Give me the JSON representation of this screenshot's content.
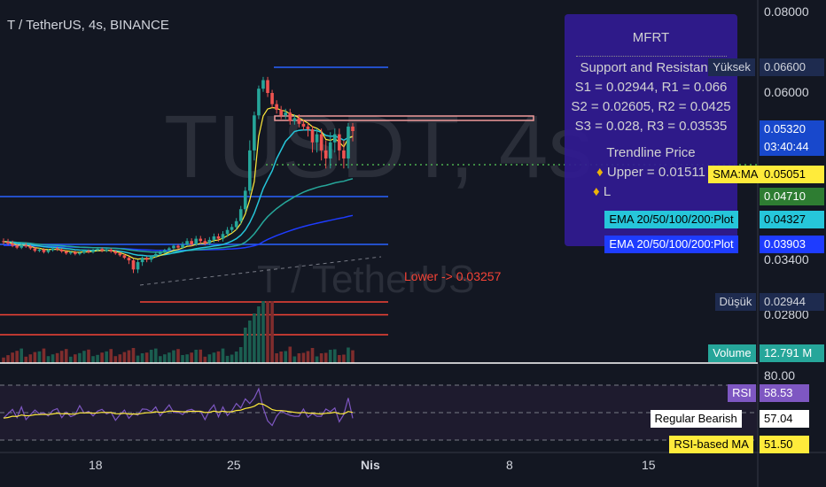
{
  "header": {
    "title": "T / TetherUS, 4s, BINANCE"
  },
  "watermark": {
    "symbol": "TUSDT, 4s",
    "name": "T / TetherUS"
  },
  "panel": {
    "title": "MFRT",
    "sr_title": "Support and Resistance",
    "lines": [
      "S1 = 0.02944, R1 = 0.066",
      "S2 = 0.02605, R2 = 0.0425",
      "S3 = 0.028, R3 = 0.03535"
    ],
    "trend_title": "Trendline Price",
    "trend_upper": "Upper = 0.01511",
    "trend_lower": "L"
  },
  "lower_label": "Lower -> 0.03257",
  "price_axis": [
    {
      "label": "0.08000",
      "v": 0.08
    },
    {
      "label": "0.06000",
      "v": 0.06
    },
    {
      "label": "0.03400",
      "v": 0.034
    },
    {
      "label": "0.02800",
      "v": 0.028
    }
  ],
  "price_tags": [
    {
      "name": "Yüksek",
      "value": "0.06600",
      "v": 0.066,
      "bg": "#1e2b4f",
      "fg": "#d1d4dc",
      "side": "#131722"
    },
    {
      "name": "",
      "value": "0.05320",
      "time": "03:40:44",
      "v": 0.0532,
      "bg": "#1848cc",
      "fg": "#ffffff"
    },
    {
      "name": "SMA:MA",
      "value": "0.05051",
      "v": 0.05051,
      "bg": "#ffeb3b",
      "fg": "#000000"
    },
    {
      "name": "",
      "value": "0.04710",
      "v": 0.0471,
      "bg": "#2e7d32",
      "fg": "#ffffff"
    },
    {
      "name": "EMA 20/50/100/200:Plot",
      "value": "0.04327",
      "v": 0.04327,
      "bg": "#26c6da",
      "fg": "#000000"
    },
    {
      "name": "EMA 20/50/100/200:Plot",
      "value": "0.03903",
      "v": 0.03903,
      "bg": "#1e3cff",
      "fg": "#ffffff"
    },
    {
      "name": "Düşük",
      "value": "0.02944",
      "v": 0.02944,
      "bg": "#1e2b4f",
      "fg": "#d1d4dc"
    },
    {
      "name": "Volume",
      "value": "12.791 M",
      "bg": "#26a69a",
      "fg": "#ffffff"
    }
  ],
  "rsi_axis": {
    "label": "80.00"
  },
  "rsi_tags": [
    {
      "name": "RSI",
      "value": "58.53",
      "bg": "#7e57c2",
      "fg": "#ffffff"
    },
    {
      "name": "Regular Bearish",
      "value": "57.04",
      "bg": "#ffffff",
      "fg": "#000000"
    },
    {
      "name": "RSI-based MA",
      "value": "51.50",
      "bg": "#ffeb3b",
      "fg": "#000000"
    }
  ],
  "x_axis": [
    "18",
    "25",
    "Nis",
    "8",
    "15"
  ],
  "chart_data": {
    "type": "candlestick",
    "x_ticks": [
      "18",
      "25",
      "Nis",
      "8",
      "15"
    ],
    "y_ticks": [
      0.08,
      0.06,
      0.034,
      0.028
    ],
    "high": 0.066,
    "low": 0.02944,
    "last": 0.0532,
    "support": [
      0.02944,
      0.02605,
      0.028
    ],
    "resistance": [
      0.066,
      0.0425,
      0.03535
    ],
    "sma": 0.05051,
    "ema": [
      0.04327,
      0.03903
    ],
    "volume_last": "12.791 M",
    "rsi": 58.53,
    "rsi_ma": 51.5,
    "regular_bearish": 57.04,
    "close": [
      0.0395,
      0.0392,
      0.0386,
      0.038,
      0.0388,
      0.0384,
      0.0378,
      0.037,
      0.0374,
      0.0366,
      0.0372,
      0.0378,
      0.0374,
      0.0368,
      0.0362,
      0.0366,
      0.036,
      0.0364,
      0.037,
      0.0366,
      0.0372,
      0.0376,
      0.037,
      0.0374,
      0.0368,
      0.0362,
      0.0356,
      0.0348,
      0.034,
      0.033,
      0.0338,
      0.0348,
      0.0342,
      0.0352,
      0.036,
      0.0366,
      0.0372,
      0.0378,
      0.0386,
      0.038,
      0.039,
      0.0396,
      0.039,
      0.04,
      0.0396,
      0.0392,
      0.0398,
      0.0404,
      0.04,
      0.0408,
      0.0415,
      0.042,
      0.043,
      0.045,
      0.048,
      0.052,
      0.056,
      0.061,
      0.063,
      0.06,
      0.058,
      0.057,
      0.056,
      0.0565,
      0.055,
      0.0555,
      0.0545,
      0.054,
      0.0535,
      0.0525,
      0.053,
      0.052,
      0.0515,
      0.0525,
      0.053,
      0.052,
      0.0515,
      0.054,
      0.0532
    ]
  }
}
